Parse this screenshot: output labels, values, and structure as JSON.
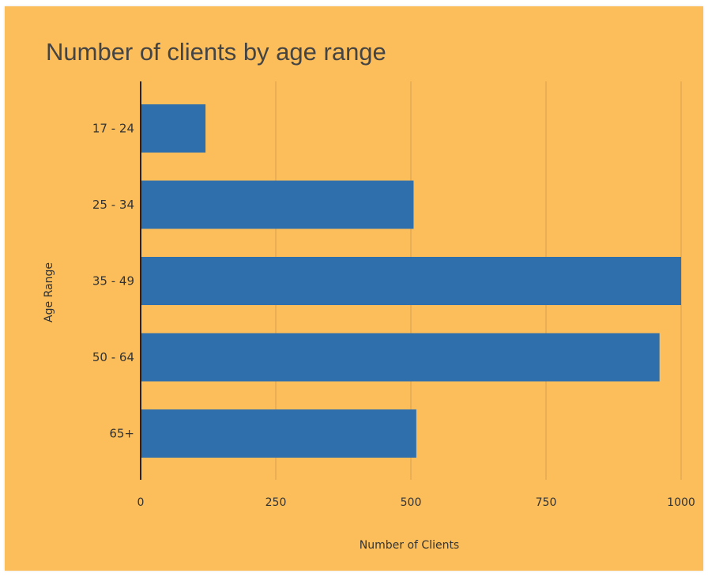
{
  "chart_data": {
    "type": "bar",
    "orientation": "horizontal",
    "title": "Number of clients by age range",
    "xlabel": "Number of Clients",
    "ylabel": "Age Range",
    "categories": [
      "17 - 24",
      "25 - 34",
      "35 - 49",
      "50 - 64",
      "65+"
    ],
    "values": [
      120,
      505,
      1000,
      960,
      510
    ],
    "xlim": [
      0,
      1000
    ],
    "xticks": [
      0,
      250,
      500,
      750,
      1000
    ],
    "grid": "vertical",
    "legend": "none",
    "bar_color": "#2f6fab",
    "background_color": "#fbbe5b",
    "grid_color": "#d9a04d"
  }
}
